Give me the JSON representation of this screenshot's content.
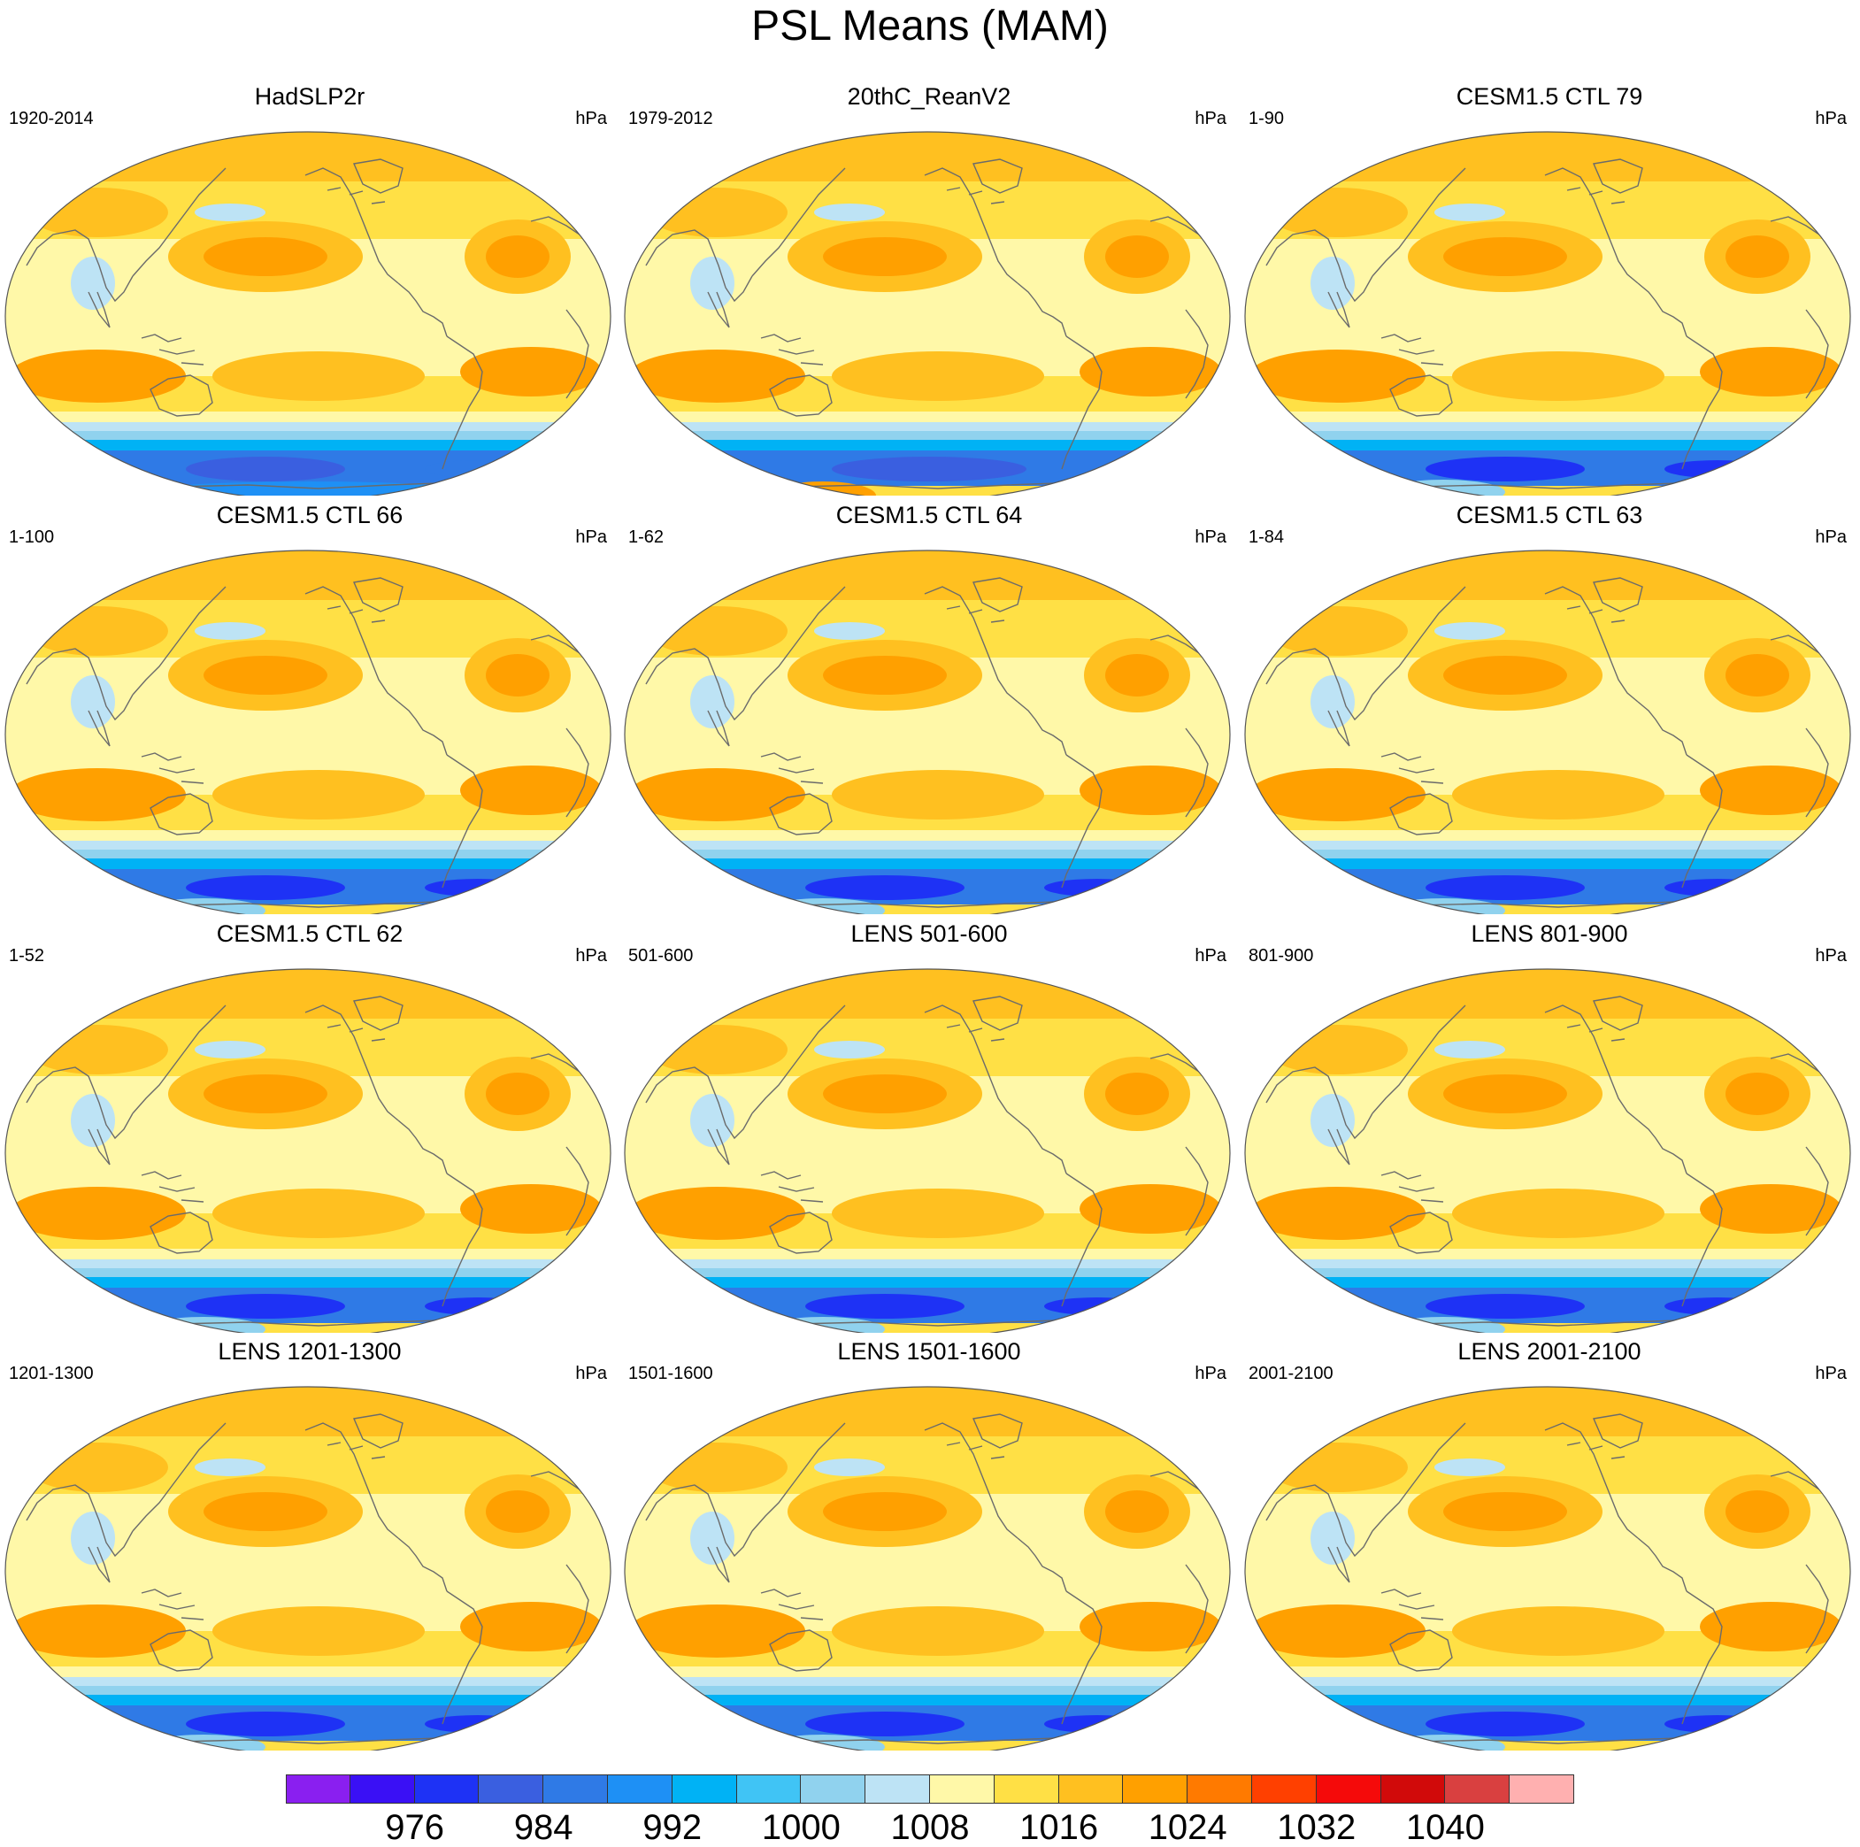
{
  "title": "PSL Means (MAM)",
  "units": "hPa",
  "panels": [
    {
      "title": "HadSLP2r",
      "period": "1920-2014",
      "south_variant": "obs"
    },
    {
      "title": "20thC_ReanV2",
      "period": "1979-2012",
      "south_variant": "rean"
    },
    {
      "title": "CESM1.5 CTL 79",
      "period": "1-90",
      "south_variant": "model"
    },
    {
      "title": "CESM1.5 CTL 66",
      "period": "1-100",
      "south_variant": "model"
    },
    {
      "title": "CESM1.5 CTL 64",
      "period": "1-62",
      "south_variant": "model"
    },
    {
      "title": "CESM1.5 CTL 63",
      "period": "1-84",
      "south_variant": "model"
    },
    {
      "title": "CESM1.5 CTL 62",
      "period": "1-52",
      "south_variant": "model"
    },
    {
      "title": "LENS 501-600",
      "period": "501-600",
      "south_variant": "model"
    },
    {
      "title": "LENS 801-900",
      "period": "801-900",
      "south_variant": "model"
    },
    {
      "title": "LENS 1201-1300",
      "period": "1201-1300",
      "south_variant": "model"
    },
    {
      "title": "LENS 1501-1600",
      "period": "1501-1600",
      "south_variant": "model"
    },
    {
      "title": "LENS 2001-2100",
      "period": "2001-2100",
      "south_variant": "model"
    }
  ],
  "colorbar": {
    "colors": [
      "#8a1ff0",
      "#3a10f5",
      "#1e32f5",
      "#3a5fe0",
      "#2f7ae6",
      "#1e90f5",
      "#00b2f5",
      "#40c4f5",
      "#90d2ee",
      "#bde3f5",
      "#fff8a8",
      "#ffe045",
      "#ffc020",
      "#ffa000",
      "#ff7a00",
      "#ff4000",
      "#f50a0a",
      "#d10a0a",
      "#d94040",
      "#ffb0b0"
    ],
    "labels": [
      "976",
      "984",
      "992",
      "1000",
      "1008",
      "1016",
      "1024",
      "1032",
      "1040"
    ]
  }
}
